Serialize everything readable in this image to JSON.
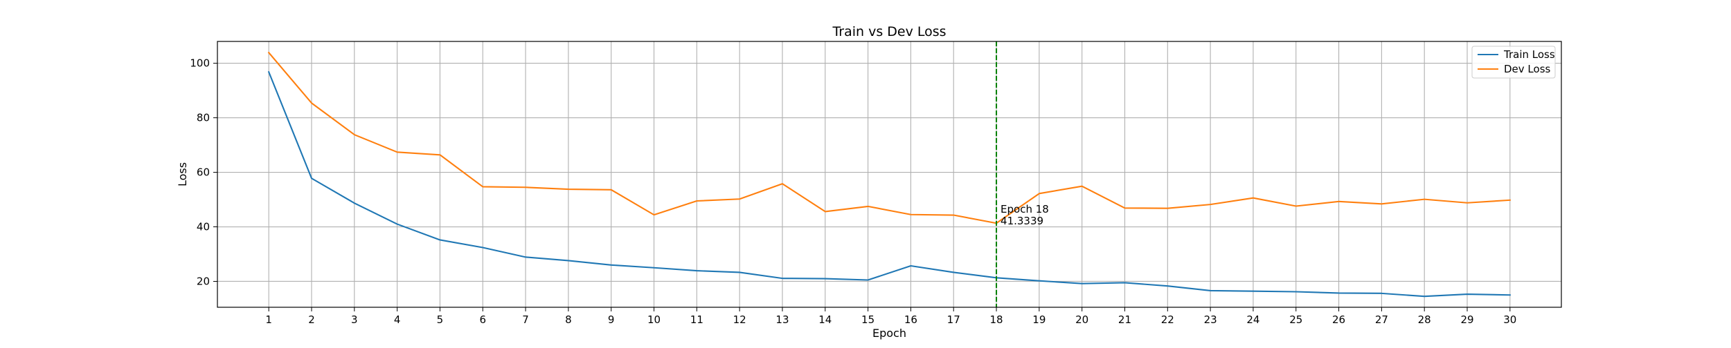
{
  "chart_data": {
    "type": "line",
    "title": "Train vs Dev Loss",
    "xlabel": "Epoch",
    "ylabel": "Loss",
    "x": [
      1,
      2,
      3,
      4,
      5,
      6,
      7,
      8,
      9,
      10,
      11,
      12,
      13,
      14,
      15,
      16,
      17,
      18,
      19,
      20,
      21,
      22,
      23,
      24,
      25,
      26,
      27,
      28,
      29,
      30
    ],
    "xlim": [
      -0.2,
      31.2
    ],
    "ylim": [
      10.5,
      108
    ],
    "yticks": [
      20,
      40,
      60,
      80,
      100
    ],
    "grid": true,
    "legend_position": "upper right",
    "series": [
      {
        "name": "Train Loss",
        "color": "#1f77b4",
        "values": [
          96.8,
          57.8,
          48.7,
          41.0,
          35.2,
          32.4,
          28.9,
          27.6,
          26.0,
          25.0,
          23.9,
          23.3,
          21.1,
          21.0,
          20.5,
          25.7,
          23.3,
          21.3,
          20.2,
          19.2,
          19.5,
          18.3,
          16.6,
          16.4,
          16.2,
          15.7,
          15.6,
          14.5,
          15.3,
          15.0
        ]
      },
      {
        "name": "Dev Loss",
        "color": "#ff7f0e",
        "values": [
          103.9,
          85.4,
          73.8,
          67.4,
          66.4,
          54.7,
          54.5,
          53.8,
          53.6,
          44.4,
          49.5,
          50.2,
          55.8,
          45.6,
          47.5,
          44.5,
          44.3,
          41.3339,
          52.2,
          54.9,
          46.9,
          46.8,
          48.2,
          50.6,
          47.6,
          49.3,
          48.4,
          50.1,
          48.8,
          49.8
        ]
      }
    ],
    "annotation": {
      "epoch": 18,
      "value": 41.3339,
      "line_color": "#008000",
      "text_line1": "Epoch 18",
      "text_line2": "41.3339"
    }
  }
}
